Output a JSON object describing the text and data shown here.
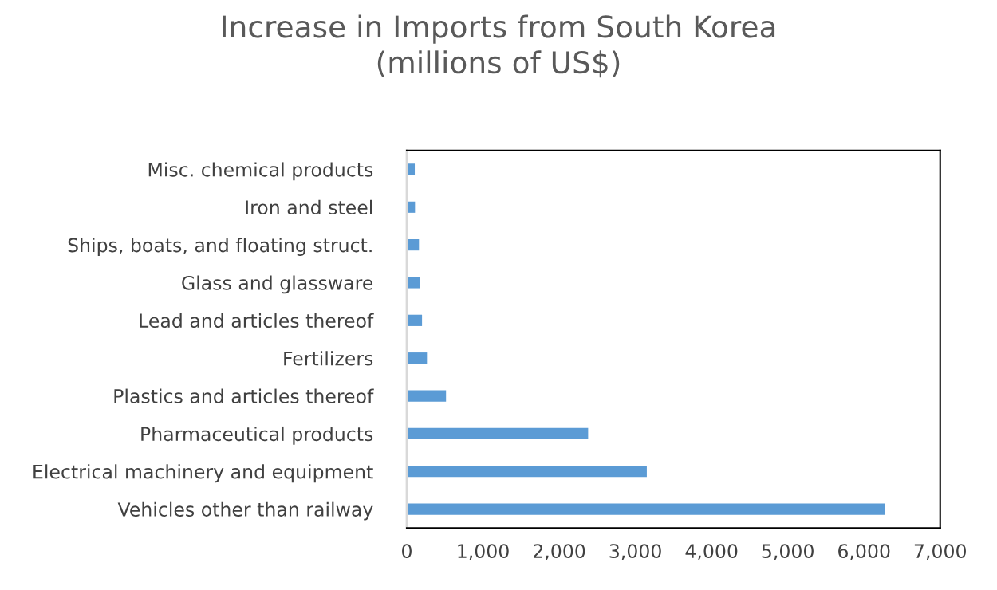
{
  "chart_data": {
    "type": "bar",
    "orientation": "horizontal",
    "title": "Increase in Imports from South Korea\n(millions of US$)",
    "categories": [
      "Misc. chemical products",
      "Iron and steel",
      "Ships, boats, and floating struct.",
      "Glass and glassware",
      "Lead and articles thereof",
      "Fertilizers",
      "Plastics and articles thereof",
      "Pharmaceutical products",
      "Electrical machinery and equipment",
      "Vehicles other than railway"
    ],
    "values": [
      105,
      108,
      160,
      175,
      200,
      265,
      515,
      2380,
      3150,
      6275
    ],
    "color": "#5b9bd5",
    "xlim": [
      0,
      7000
    ],
    "xticks": [
      {
        "value": 0,
        "label": "0"
      },
      {
        "value": 1000,
        "label": "1,000"
      },
      {
        "value": 2000,
        "label": "2,000"
      },
      {
        "value": 3000,
        "label": "3,000"
      },
      {
        "value": 4000,
        "label": "4,000"
      },
      {
        "value": 5000,
        "label": "5,000"
      },
      {
        "value": 6000,
        "label": "6,000"
      },
      {
        "value": 7000,
        "label": "7,000"
      }
    ],
    "grid": false,
    "legend": false
  }
}
